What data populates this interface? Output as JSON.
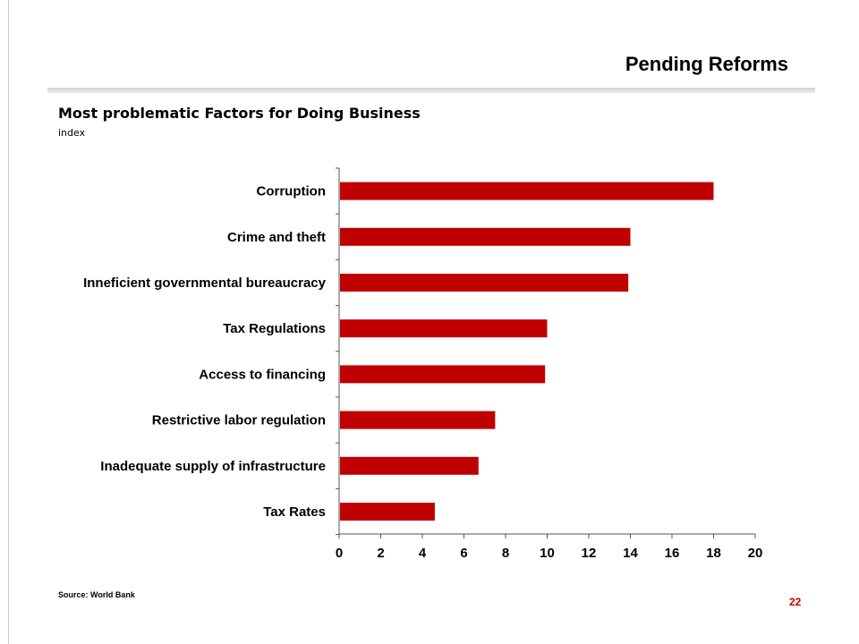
{
  "slide": {
    "title": "Pending Reforms",
    "source": "Source: World Bank",
    "page_number": "22"
  },
  "colors": {
    "bar": "#c00000",
    "accent_text": "#c00000",
    "axis": "#555555"
  },
  "chart_data": {
    "type": "bar",
    "orientation": "horizontal",
    "title": "Most problematic Factors for Doing Business",
    "subtitle": "index",
    "categories": [
      "Corruption",
      "Crime and theft",
      "Inneficient governmental bureaucracy",
      "Tax Regulations",
      "Access to financing",
      "Restrictive labor regulation",
      "Inadequate supply of infrastructure",
      "Tax Rates"
    ],
    "values": [
      18,
      14,
      13.9,
      10,
      9.9,
      7.5,
      6.7,
      4.6
    ],
    "xlim": [
      0,
      20
    ],
    "xticks": [
      "0",
      "2",
      "4",
      "6",
      "8",
      "10",
      "12",
      "14",
      "16",
      "18",
      "20"
    ],
    "grid": false,
    "legend": "none"
  }
}
